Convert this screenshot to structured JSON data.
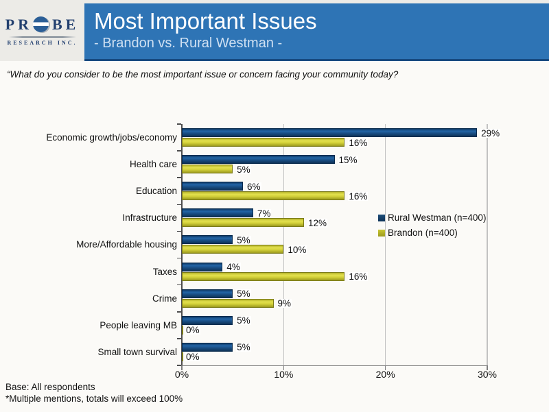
{
  "logo": {
    "word_left": "PR",
    "word_right": "BE",
    "tagline": "RESEARCH INC."
  },
  "header": {
    "title": "Most Important Issues",
    "subtitle": "- Brandon vs. Rural Westman -",
    "banner_color": "#2E74B5"
  },
  "question": "“What do you consider to be the most important issue or concern facing your community today?",
  "chart_data": {
    "type": "bar",
    "orientation": "horizontal",
    "title": "Most Important Issues - Brandon vs. Rural Westman",
    "categories": [
      "Economic growth/jobs/economy",
      "Health care",
      "Education",
      "Infrastructure",
      "More/Affordable housing",
      "Taxes",
      "Crime",
      "People leaving MB",
      "Small town survival"
    ],
    "series": [
      {
        "name": "Rural Westman (n=400)",
        "color_main": "#1F4E79",
        "color_dark": "#0E3257",
        "values": [
          29,
          15,
          6,
          7,
          5,
          4,
          5,
          5,
          5
        ]
      },
      {
        "name": "Brandon (n=400)",
        "color_main": "#C9C731",
        "color_dark": "#9C9A1E",
        "values": [
          16,
          5,
          16,
          12,
          10,
          16,
          9,
          0,
          0
        ]
      }
    ],
    "value_label_format": "{v}%",
    "xlim": [
      0,
      30
    ],
    "x_tick_values": [
      0,
      10,
      20,
      30
    ],
    "x_tick_labels": [
      "0%",
      "10%",
      "20%",
      "30%"
    ],
    "grid": true,
    "legend_position": "inside-right"
  },
  "footer": {
    "line1": "Base: All respondents",
    "line2": "*Multiple mentions, totals will exceed 100%"
  }
}
